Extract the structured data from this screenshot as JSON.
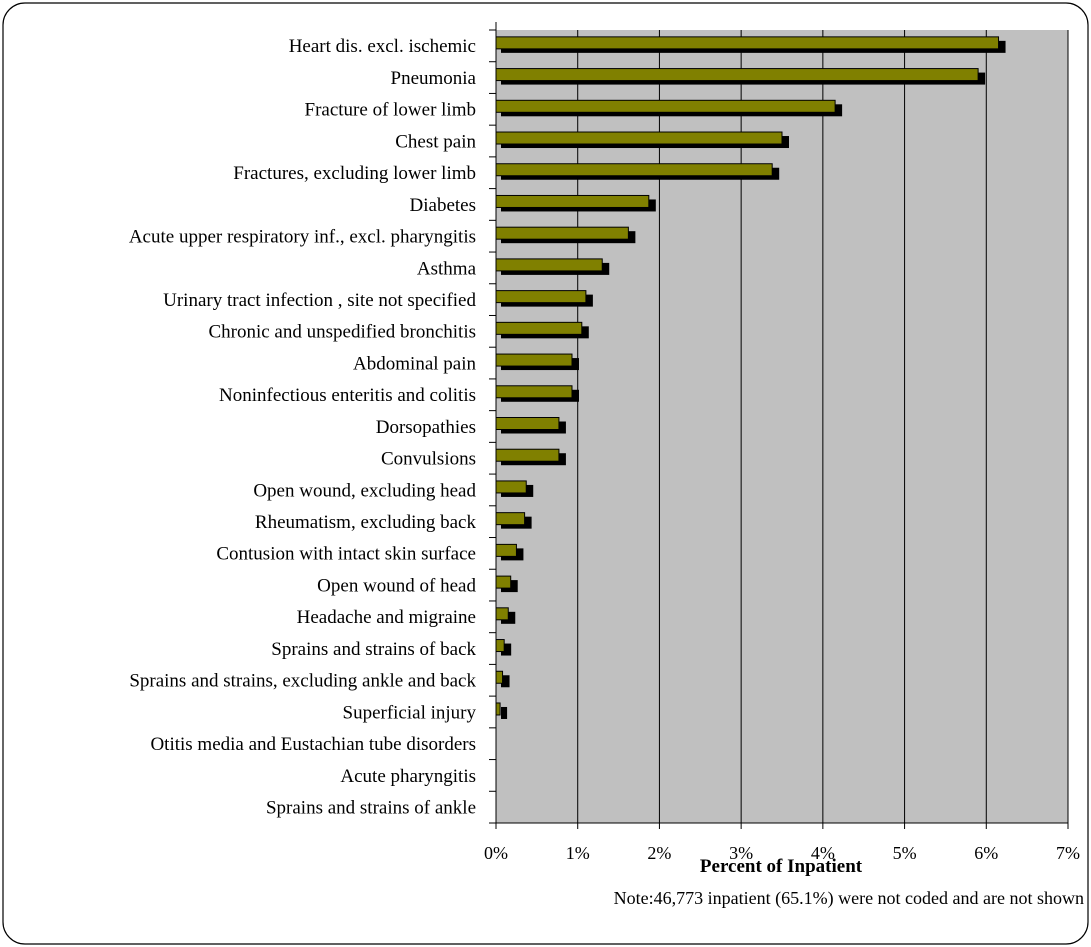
{
  "colors": {
    "plot_background": "#c0c0c0",
    "bar_front": "#808000",
    "bar_shadow": "#000000",
    "gridline": "#000000",
    "frame_border": "#000000"
  },
  "chart_data": {
    "type": "bar",
    "orientation": "horizontal",
    "title": "",
    "xlabel": "Percent of Inpatient",
    "ylabel": "",
    "note": "Note:46,773 inpatient (65.1%) were not coded and are not shown",
    "xlim": [
      0,
      7
    ],
    "x_ticks": [
      0,
      1,
      2,
      3,
      4,
      5,
      6,
      7
    ],
    "x_tick_labels": [
      "0%",
      "1%",
      "2%",
      "3%",
      "4%",
      "5%",
      "6%",
      "7%"
    ],
    "grid": true,
    "legend": "none",
    "categories": [
      "Heart dis. excl. ischemic",
      "Pneumonia",
      "Fracture of lower limb",
      "Chest pain",
      "Fractures, excluding lower limb",
      "Diabetes",
      "Acute upper respiratory inf., excl. pharyngitis",
      "Asthma",
      "Urinary tract infection , site not specified",
      "Chronic and unspedified bronchitis",
      "Abdominal pain",
      "Noninfectious enteritis and colitis",
      "Dorsopathies",
      "Convulsions",
      "Open wound, excluding head",
      "Rheumatism, excluding back",
      "Contusion with intact skin surface",
      "Open wound of head",
      "Headache and migraine",
      "Sprains and strains of back",
      "Sprains and strains, excluding ankle and back",
      "Superficial injury",
      "Otitis media and Eustachian tube disorders",
      "Acute pharyngitis",
      "Sprains and strains of ankle"
    ],
    "values": [
      6.15,
      5.9,
      4.15,
      3.5,
      3.38,
      1.87,
      1.62,
      1.3,
      1.1,
      1.05,
      0.93,
      0.93,
      0.77,
      0.77,
      0.37,
      0.35,
      0.25,
      0.18,
      0.15,
      0.1,
      0.08,
      0.05,
      0,
      0,
      0
    ]
  }
}
